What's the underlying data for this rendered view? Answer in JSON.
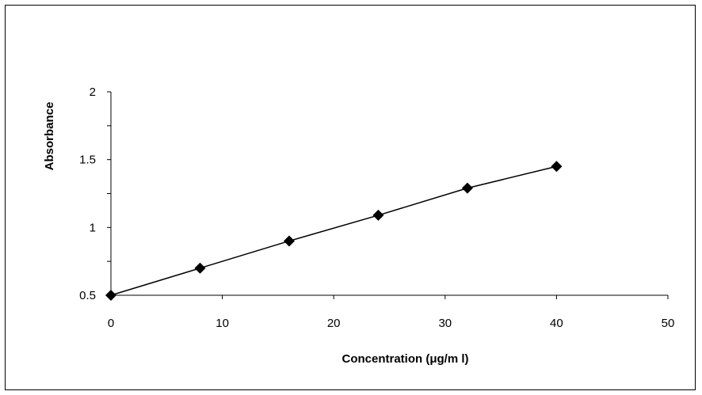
{
  "chart_data": {
    "type": "scatter",
    "xlabel": "Concentration (μg/m l)",
    "ylabel": "Absorbance",
    "xlim": [
      0,
      50
    ],
    "ylim": [
      0.5,
      2
    ],
    "xticks": [
      0,
      10,
      20,
      30,
      40,
      50
    ],
    "xtick_labels": [
      "0",
      "10",
      "20",
      "30",
      "40",
      "50"
    ],
    "yticks": [
      0.5,
      0.75,
      1,
      1.25,
      1.5,
      1.75,
      2
    ],
    "ytick_labels": [
      "0.5",
      "",
      "1",
      "",
      "1.5",
      "",
      "2"
    ],
    "grid": false,
    "marker": "diamond",
    "line": "connected",
    "colors": {
      "series": "#000000"
    },
    "series": [
      {
        "x": [
          0,
          8,
          16,
          24,
          32,
          40
        ],
        "y": [
          0.5,
          0.7,
          0.9,
          1.09,
          1.29,
          1.45
        ]
      }
    ]
  }
}
